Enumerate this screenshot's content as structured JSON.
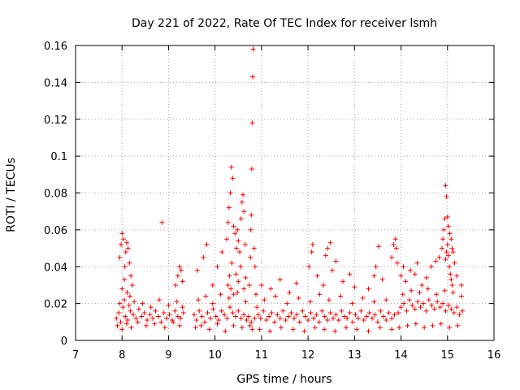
{
  "chart_data": {
    "type": "scatter",
    "title": "Day 221 of 2022, Rate Of TEC Index for receiver lsmh",
    "xlabel": "GPS time / hours",
    "ylabel": "ROTI / TECUs",
    "xlim": [
      7,
      16
    ],
    "ylim": [
      0,
      0.16
    ],
    "xticks": [
      "7",
      "8",
      "9",
      "10",
      "11",
      "12",
      "13",
      "14",
      "15",
      "16"
    ],
    "yticks": [
      "0",
      "0.02",
      "0.04",
      "0.06",
      "0.08",
      "0.1",
      "0.12",
      "0.14",
      "0.16"
    ],
    "grid": true,
    "marker": "+",
    "color": "#ff0000",
    "series": [
      {
        "name": "ROTI",
        "x": [
          7.88,
          7.93,
          7.97,
          8.02,
          8.07,
          8.12,
          8.18,
          8.24,
          8.3,
          8.36,
          8.42,
          8.48,
          8.54,
          8.6,
          8.66,
          8.72,
          8.78,
          8.84,
          8.9,
          8.96,
          9.02,
          9.08,
          9.14,
          9.2,
          9.26,
          9.32,
          7.9,
          7.95,
          8.0,
          8.05,
          8.1,
          8.15,
          8.2,
          8.26,
          8.34,
          8.44,
          8.52,
          8.62,
          8.7,
          8.8,
          8.92,
          9.0,
          9.1,
          9.18,
          9.24,
          9.3,
          7.95,
          7.98,
          8.0,
          8.03,
          8.06,
          8.08,
          8.1,
          8.13,
          8.16,
          8.19,
          8.22,
          8.0,
          8.05,
          8.11,
          8.17,
          8.86,
          9.15,
          9.2,
          9.24,
          9.27,
          9.3,
          9.55,
          9.6,
          9.66,
          9.72,
          9.78,
          9.84,
          9.9,
          9.96,
          10.02,
          10.08,
          10.14,
          10.2,
          10.26,
          10.32,
          10.38,
          10.44,
          10.5,
          10.56,
          10.62,
          10.68,
          9.58,
          9.64,
          9.7,
          9.8,
          9.88,
          9.95,
          10.05,
          10.12,
          10.22,
          10.3,
          10.4,
          10.48,
          10.58,
          10.66,
          9.62,
          9.75,
          9.82,
          9.95,
          10.05,
          10.15,
          10.25,
          10.28,
          10.3,
          10.33,
          10.35,
          10.38,
          10.4,
          10.43,
          10.46,
          10.48,
          10.5,
          10.53,
          10.56,
          10.58,
          10.6,
          10.62,
          10.65,
          10.28,
          10.31,
          10.34,
          10.36,
          10.4,
          10.45,
          10.5,
          10.55,
          10.62,
          10.66,
          10.72,
          10.74,
          10.76,
          10.77,
          10.78,
          10.79,
          10.8,
          10.81,
          10.82,
          10.84,
          10.86,
          10.88,
          10.9,
          10.75,
          10.78,
          10.8,
          10.85,
          10.93,
          10.98,
          11.04,
          11.1,
          11.16,
          11.22,
          11.28,
          11.34,
          11.4,
          11.46,
          11.52,
          11.58,
          11.64,
          11.7,
          11.76,
          11.82,
          11.88,
          11.94,
          12.0,
          12.06,
          12.12,
          12.18,
          12.24,
          12.3,
          12.36,
          12.42,
          12.48,
          12.54,
          12.6,
          12.66,
          12.72,
          12.78,
          12.84,
          12.9,
          12.96,
          13.02,
          13.08,
          13.14,
          13.2,
          13.26,
          13.32,
          13.38,
          13.44,
          13.5,
          13.56,
          13.62,
          13.68,
          13.74,
          13.8,
          13.86,
          10.96,
          11.06,
          11.18,
          11.3,
          11.42,
          11.55,
          11.68,
          11.8,
          11.92,
          12.05,
          12.15,
          12.25,
          12.35,
          12.45,
          12.58,
          12.7,
          12.82,
          12.95,
          13.05,
          13.18,
          13.3,
          13.42,
          13.55,
          13.68,
          13.8,
          11.0,
          11.2,
          11.4,
          11.6,
          11.75,
          12.02,
          12.08,
          12.1,
          12.2,
          12.33,
          12.38,
          12.42,
          12.48,
          12.52,
          12.6,
          12.75,
          12.9,
          13.0,
          13.3,
          13.42,
          13.46,
          13.52,
          13.6,
          13.8,
          13.84,
          13.88,
          13.9,
          13.92,
          13.94,
          14.0,
          14.06,
          14.12,
          14.18,
          14.24,
          14.3,
          14.36,
          14.42,
          14.48,
          14.54,
          14.6,
          14.66,
          14.72,
          14.78,
          14.84,
          14.9,
          14.96,
          15.02,
          15.08,
          15.14,
          15.2,
          15.26,
          15.32,
          13.96,
          14.04,
          14.14,
          14.22,
          14.32,
          14.4,
          14.5,
          14.58,
          14.68,
          14.76,
          14.86,
          14.94,
          15.04,
          15.12,
          15.22,
          15.3,
          14.0,
          14.05,
          14.1,
          14.2,
          14.3,
          14.35,
          14.45,
          14.55,
          14.65,
          14.75,
          14.82,
          14.88,
          14.9,
          14.92,
          14.94,
          14.96,
          14.98,
          15.0,
          15.02,
          15.05,
          15.08,
          15.1,
          15.12,
          15.15,
          15.2,
          15.3,
          14.96,
          14.98,
          15.0,
          15.02,
          15.04,
          15.06,
          15.08,
          15.1
        ],
        "y": [
          0.012,
          0.015,
          0.01,
          0.018,
          0.013,
          0.011,
          0.016,
          0.014,
          0.012,
          0.017,
          0.013,
          0.015,
          0.011,
          0.014,
          0.012,
          0.016,
          0.013,
          0.01,
          0.015,
          0.012,
          0.014,
          0.011,
          0.016,
          0.013,
          0.012,
          0.015,
          0.008,
          0.02,
          0.006,
          0.022,
          0.009,
          0.019,
          0.007,
          0.021,
          0.01,
          0.02,
          0.008,
          0.018,
          0.009,
          0.022,
          0.007,
          0.019,
          0.01,
          0.021,
          0.008,
          0.018,
          0.045,
          0.052,
          0.058,
          0.055,
          0.04,
          0.048,
          0.053,
          0.05,
          0.042,
          0.035,
          0.03,
          0.028,
          0.033,
          0.026,
          0.024,
          0.064,
          0.03,
          0.035,
          0.04,
          0.038,
          0.032,
          0.014,
          0.011,
          0.016,
          0.013,
          0.01,
          0.015,
          0.012,
          0.017,
          0.013,
          0.011,
          0.016,
          0.014,
          0.012,
          0.018,
          0.015,
          0.013,
          0.016,
          0.012,
          0.014,
          0.011,
          0.007,
          0.022,
          0.008,
          0.024,
          0.006,
          0.02,
          0.009,
          0.025,
          0.005,
          0.023,
          0.008,
          0.026,
          0.007,
          0.021,
          0.038,
          0.045,
          0.052,
          0.03,
          0.04,
          0.048,
          0.055,
          0.064,
          0.072,
          0.08,
          0.094,
          0.088,
          0.062,
          0.058,
          0.05,
          0.06,
          0.054,
          0.048,
          0.066,
          0.075,
          0.079,
          0.07,
          0.052,
          0.03,
          0.035,
          0.028,
          0.042,
          0.025,
          0.036,
          0.032,
          0.04,
          0.028,
          0.034,
          0.013,
          0.03,
          0.045,
          0.06,
          0.068,
          0.093,
          0.118,
          0.143,
          0.158,
          0.05,
          0.04,
          0.025,
          0.018,
          0.008,
          0.01,
          0.006,
          0.012,
          0.014,
          0.012,
          0.016,
          0.011,
          0.013,
          0.015,
          0.01,
          0.014,
          0.012,
          0.016,
          0.011,
          0.013,
          0.015,
          0.012,
          0.014,
          0.01,
          0.016,
          0.013,
          0.011,
          0.015,
          0.012,
          0.014,
          0.01,
          0.016,
          0.013,
          0.011,
          0.015,
          0.012,
          0.014,
          0.011,
          0.016,
          0.013,
          0.012,
          0.015,
          0.01,
          0.014,
          0.012,
          0.016,
          0.011,
          0.013,
          0.015,
          0.012,
          0.014,
          0.01,
          0.016,
          0.013,
          0.011,
          0.015,
          0.012,
          0.014,
          0.006,
          0.022,
          0.005,
          0.024,
          0.007,
          0.02,
          0.006,
          0.023,
          0.005,
          0.021,
          0.007,
          0.025,
          0.006,
          0.022,
          0.005,
          0.024,
          0.007,
          0.02,
          0.006,
          0.023,
          0.005,
          0.021,
          0.007,
          0.022,
          0.006,
          0.03,
          0.028,
          0.033,
          0.026,
          0.031,
          0.04,
          0.048,
          0.052,
          0.035,
          0.03,
          0.046,
          0.05,
          0.053,
          0.038,
          0.043,
          0.032,
          0.036,
          0.029,
          0.028,
          0.035,
          0.04,
          0.051,
          0.033,
          0.045,
          0.052,
          0.055,
          0.05,
          0.042,
          0.015,
          0.018,
          0.02,
          0.016,
          0.022,
          0.019,
          0.017,
          0.021,
          0.018,
          0.02,
          0.016,
          0.022,
          0.019,
          0.017,
          0.021,
          0.018,
          0.02,
          0.016,
          0.019,
          0.017,
          0.015,
          0.018,
          0.014,
          0.016,
          0.007,
          0.025,
          0.008,
          0.027,
          0.009,
          0.026,
          0.007,
          0.028,
          0.008,
          0.025,
          0.009,
          0.027,
          0.007,
          0.026,
          0.008,
          0.024,
          0.035,
          0.04,
          0.032,
          0.038,
          0.036,
          0.042,
          0.03,
          0.034,
          0.04,
          0.043,
          0.045,
          0.05,
          0.055,
          0.06,
          0.066,
          0.084,
          0.078,
          0.067,
          0.062,
          0.058,
          0.055,
          0.05,
          0.048,
          0.042,
          0.035,
          0.03,
          0.044,
          0.048,
          0.052,
          0.046,
          0.04,
          0.036,
          0.033,
          0.03
        ]
      }
    ]
  }
}
